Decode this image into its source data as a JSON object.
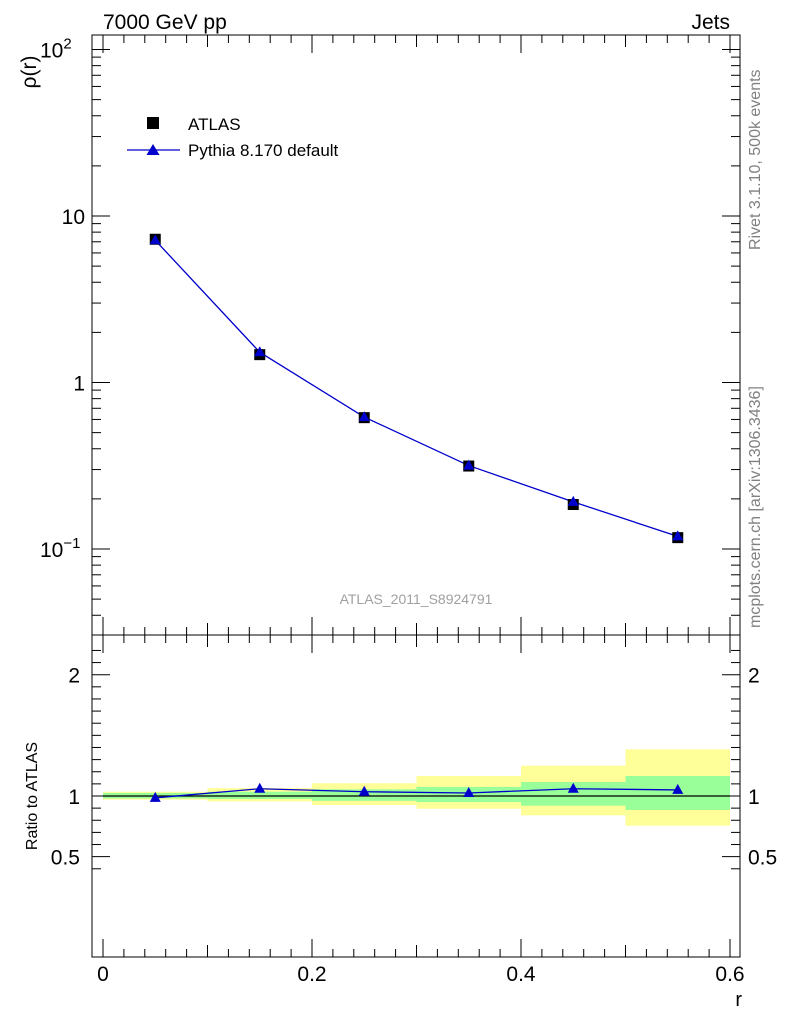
{
  "header": {
    "left": "7000 GeV pp",
    "right": "Jets"
  },
  "side_labels": {
    "top": "Rivet 3.1.10,  500k events",
    "bottom": "mcplots.cern.ch [arXiv:1306.3436]"
  },
  "colors": {
    "data": "#000000",
    "mc": "#0000cc",
    "band_inner": "#99ff99",
    "band_outer": "#ffff99"
  },
  "chart_data": [
    {
      "type": "scatter",
      "panel": "main",
      "ylabel": "ρ(r)",
      "yscale": "log",
      "xlim": [
        -0.02,
        0.6
      ],
      "ylim": [
        0.03,
        130
      ],
      "y_tick_labels": [
        "10",
        "1"
      ],
      "y_tick_labels_pow": [
        {
          "base": "10",
          "exp": "2"
        },
        {
          "base": "10",
          "exp": "−1"
        }
      ],
      "watermark": "ATLAS_2011_S8924791",
      "legend_position": "top-left",
      "x": [
        0.05,
        0.15,
        0.25,
        0.35,
        0.45,
        0.55
      ],
      "series": [
        {
          "name": "ATLAS",
          "marker": "square",
          "values": [
            7.25,
            1.47,
            0.615,
            0.315,
            0.185,
            0.117
          ]
        },
        {
          "name": "Pythia 8.170 default",
          "marker": "triangle",
          "line": true,
          "values": [
            7.15,
            1.52,
            0.62,
            0.317,
            0.192,
            0.119
          ]
        }
      ]
    },
    {
      "type": "line",
      "panel": "ratio",
      "ylabel": "Ratio to ATLAS",
      "xlabel": "r",
      "xlim": [
        -0.02,
        0.6
      ],
      "ylim": [
        0.35,
        2.3
      ],
      "x_tick_labels": [
        "0",
        "0.2",
        "0.4",
        "0.6"
      ],
      "y_tick_labels": [
        "0.5",
        "1",
        "2"
      ],
      "bins": [
        [
          0,
          0.1
        ],
        [
          0.1,
          0.2
        ],
        [
          0.2,
          0.3
        ],
        [
          0.3,
          0.4
        ],
        [
          0.4,
          0.5
        ],
        [
          0.5,
          0.6
        ]
      ],
      "band_inner": [
        [
          0.98,
          1.025
        ],
        [
          0.975,
          1.035
        ],
        [
          0.96,
          1.055
        ],
        [
          0.95,
          1.075
        ],
        [
          0.92,
          1.115
        ],
        [
          0.885,
          1.165
        ]
      ],
      "band_outer": [
        [
          0.97,
          1.035
        ],
        [
          0.955,
          1.065
        ],
        [
          0.925,
          1.105
        ],
        [
          0.895,
          1.165
        ],
        [
          0.84,
          1.25
        ],
        [
          0.755,
          1.385
        ]
      ],
      "x": [
        0.05,
        0.15,
        0.25,
        0.35,
        0.45,
        0.55
      ],
      "series": [
        {
          "name": "Pythia 8.170 default",
          "values": [
            0.985,
            1.06,
            1.035,
            1.025,
            1.06,
            1.05
          ]
        }
      ]
    }
  ]
}
